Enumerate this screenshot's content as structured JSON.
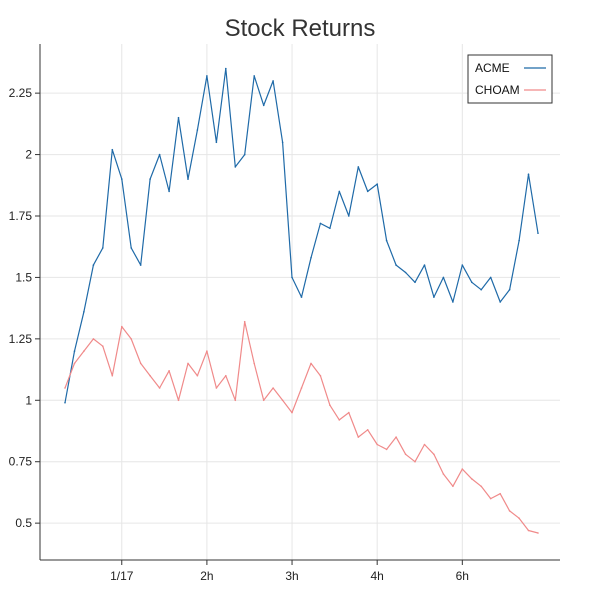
{
  "chart_data": {
    "type": "line",
    "title": "Stock Returns",
    "xlabel": "",
    "ylabel": "",
    "grid": true,
    "legend_position": "top-right",
    "x_ticks": [
      "1/17",
      "2h",
      "3h",
      "4h",
      "6h"
    ],
    "y_ticks": [
      "0.5",
      "0.75",
      "1",
      "1.25",
      "1.5",
      "1.75",
      "2",
      "2.25"
    ],
    "ylim": [
      0.35,
      2.45
    ],
    "x_range": [
      0,
      100
    ],
    "series": [
      {
        "name": "ACME",
        "color": "#1f6aa8",
        "x": [
          0,
          2,
          4,
          6,
          8,
          10,
          12,
          14,
          16,
          18,
          20,
          22,
          24,
          26,
          28,
          30,
          32,
          34,
          36,
          38,
          40,
          42,
          44,
          46,
          48,
          50,
          52,
          54,
          56,
          58,
          60,
          62,
          64,
          66,
          68,
          70,
          72,
          74,
          76,
          78,
          80,
          82,
          84,
          86,
          88,
          90,
          92,
          94,
          96,
          98,
          100
        ],
        "y": [
          0.99,
          1.2,
          1.36,
          1.55,
          1.62,
          2.02,
          1.9,
          1.62,
          1.55,
          1.9,
          2.0,
          1.85,
          2.15,
          1.9,
          2.1,
          2.32,
          2.05,
          2.35,
          1.95,
          2.0,
          2.32,
          2.2,
          2.3,
          2.05,
          1.5,
          1.42,
          1.58,
          1.72,
          1.7,
          1.85,
          1.75,
          1.95,
          1.85,
          1.88,
          1.65,
          1.55,
          1.52,
          1.48,
          1.55,
          1.42,
          1.5,
          1.4,
          1.55,
          1.48,
          1.45,
          1.5,
          1.4,
          1.45,
          1.65,
          1.92,
          1.68
        ]
      },
      {
        "name": "CHOAM",
        "color": "#f08a8a",
        "x": [
          0,
          2,
          4,
          6,
          8,
          10,
          12,
          14,
          16,
          18,
          20,
          22,
          24,
          26,
          28,
          30,
          32,
          34,
          36,
          38,
          40,
          42,
          44,
          46,
          48,
          50,
          52,
          54,
          56,
          58,
          60,
          62,
          64,
          66,
          68,
          70,
          72,
          74,
          76,
          78,
          80,
          82,
          84,
          86,
          88,
          90,
          92,
          94,
          96,
          98,
          100
        ],
        "y": [
          1.05,
          1.15,
          1.2,
          1.25,
          1.22,
          1.1,
          1.3,
          1.25,
          1.15,
          1.1,
          1.05,
          1.12,
          1.0,
          1.15,
          1.1,
          1.2,
          1.05,
          1.1,
          1.0,
          1.32,
          1.15,
          1.0,
          1.05,
          1.0,
          0.95,
          1.05,
          1.15,
          1.1,
          0.98,
          0.92,
          0.95,
          0.85,
          0.88,
          0.82,
          0.8,
          0.85,
          0.78,
          0.75,
          0.82,
          0.78,
          0.7,
          0.65,
          0.72,
          0.68,
          0.65,
          0.6,
          0.62,
          0.55,
          0.52,
          0.47,
          0.46
        ]
      }
    ]
  }
}
